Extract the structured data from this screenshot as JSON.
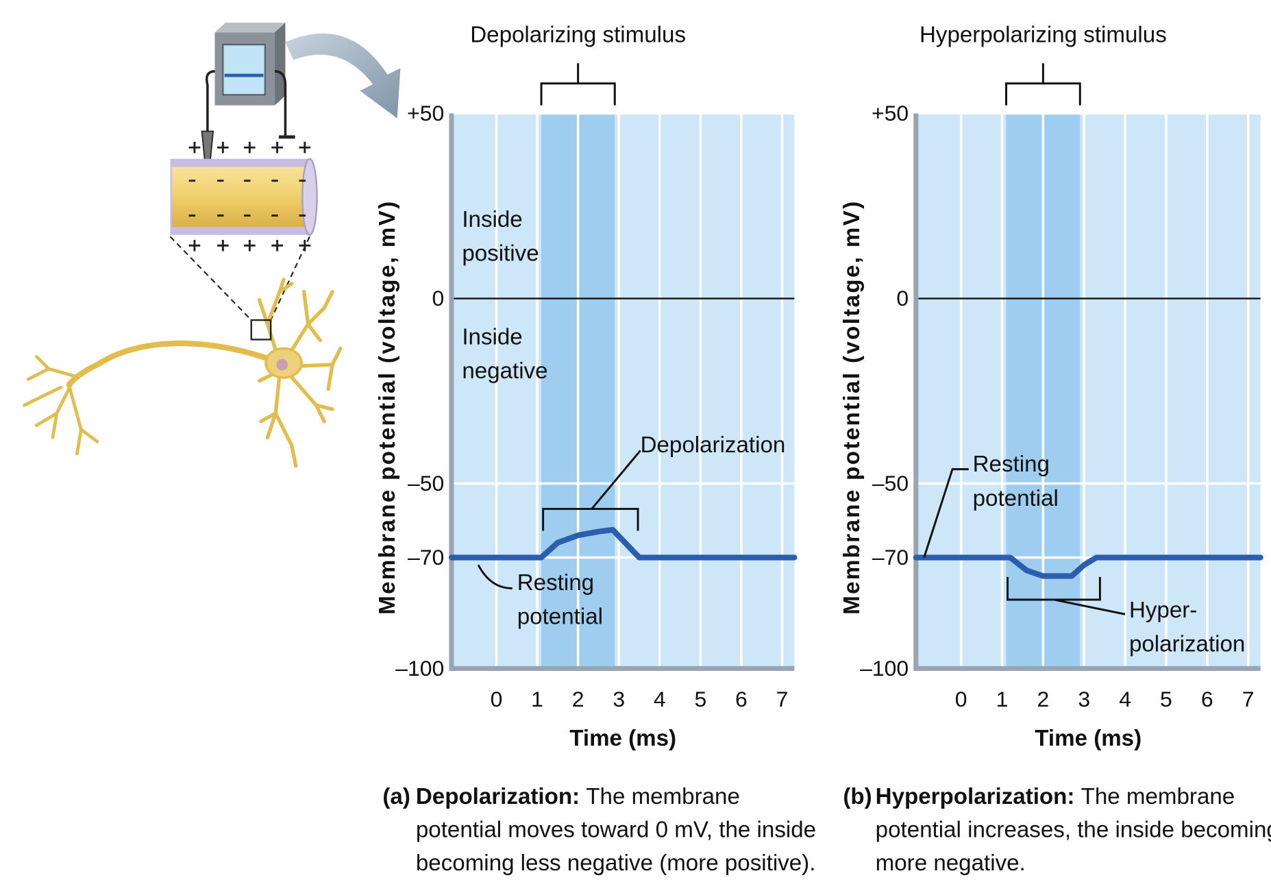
{
  "chart_data": [
    {
      "type": "line",
      "title": "Depolarizing stimulus",
      "xlabel": "Time (ms)",
      "ylabel": "Membrane potential (voltage, mV)",
      "x": [
        -1.1,
        1.1,
        1.5,
        2.0,
        2.5,
        2.85,
        3.5,
        7.3
      ],
      "series": [
        {
          "color": "#2b5fae",
          "values": [
            -70,
            -70,
            -66,
            -64,
            -63,
            -62.5,
            -70,
            -70
          ]
        }
      ],
      "xlim": [
        -1.1,
        7.3
      ],
      "xticks": [
        0,
        1,
        2,
        3,
        4,
        5,
        6,
        7
      ],
      "ylim": [
        -100,
        50
      ],
      "yticks": [
        {
          "value": -100,
          "label": "–100"
        },
        {
          "value": -70,
          "label": "–70"
        },
        {
          "value": -50,
          "label": "–50"
        },
        0,
        {
          "value": 50,
          "label": "+50"
        }
      ],
      "grid": true,
      "zero_line": true,
      "background": "#cde6f8",
      "stimulus_color": "#9fcdef",
      "stimulus_range": [
        1.1,
        2.9
      ],
      "annotations": [
        {
          "lines": [
            "Inside",
            "positive"
          ]
        },
        {
          "lines": [
            "Inside",
            "negative"
          ]
        },
        {
          "lines": [
            "Depolarization"
          ]
        },
        {
          "lines": [
            "Resting",
            "potential"
          ]
        }
      ],
      "caption_tag": "(a)",
      "caption_title": "Depolarization:",
      "caption": [
        "The membrane",
        "potential moves toward 0 mV, the inside",
        "becoming less negative (more positive)."
      ]
    },
    {
      "type": "line",
      "title": "Hyperpolarizing stimulus",
      "xlabel": "Time (ms)",
      "ylabel": "Membrane potential (voltage, mV)",
      "x": [
        -1.1,
        1.2,
        1.6,
        2.0,
        2.7,
        3.0,
        3.3,
        7.3
      ],
      "series": [
        {
          "color": "#2b5fae",
          "values": [
            -70,
            -70,
            -73.5,
            -75,
            -75,
            -72,
            -70,
            -70
          ]
        }
      ],
      "xlim": [
        -1.1,
        7.3
      ],
      "xticks": [
        0,
        1,
        2,
        3,
        4,
        5,
        6,
        7
      ],
      "ylim": [
        -100,
        50
      ],
      "yticks": [
        {
          "value": -100,
          "label": "–100"
        },
        {
          "value": -70,
          "label": "–70"
        },
        {
          "value": -50,
          "label": "–50"
        },
        0,
        {
          "value": 50,
          "label": "+50"
        }
      ],
      "grid": true,
      "zero_line": true,
      "background": "#cde6f8",
      "stimulus_color": "#9fcdef",
      "stimulus_range": [
        1.1,
        2.9
      ],
      "annotations": [
        {
          "lines": [
            "Resting",
            "potential"
          ]
        },
        {
          "lines": [
            "Hyper-",
            "polarization"
          ]
        }
      ],
      "caption_tag": "(b)",
      "caption_title": "Hyperpolarization:",
      "caption": [
        "The membrane",
        "potential increases, the inside becoming",
        "more negative."
      ]
    }
  ]
}
